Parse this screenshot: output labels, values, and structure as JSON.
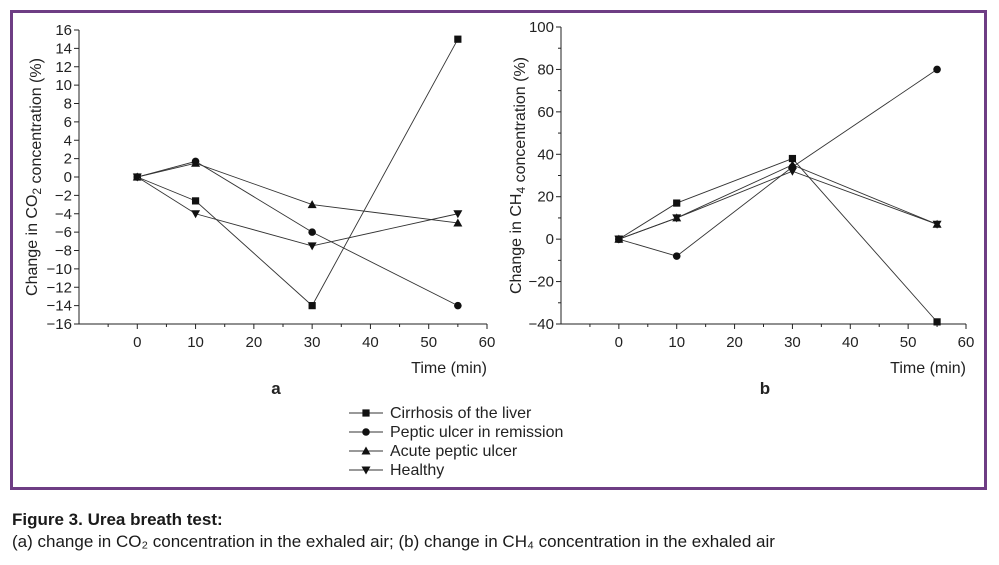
{
  "figure": {
    "title": "Figure 3. Urea breath test:",
    "caption": "(a) change in CO₂ concentration in the exhaled air; (b) change in CH₄ concentration in the exhaled air"
  },
  "legend": [
    "Cirrhosis of the liver",
    "Peptic ulcer in remission",
    "Acute peptic ulcer",
    "Healthy"
  ],
  "chart_data": [
    {
      "type": "line",
      "panel": "a",
      "xlabel": "Time (min)",
      "ylabel": "Change in CO₂ concentration (%)",
      "xlim": [
        -10,
        60
      ],
      "ylim": [
        -16,
        16
      ],
      "xticks": [
        0,
        10,
        20,
        30,
        40,
        50,
        60
      ],
      "yticks": [
        16,
        14,
        12,
        10,
        8,
        6,
        4,
        2,
        0,
        -2,
        -4,
        -6,
        -8,
        -10,
        -12,
        -14,
        -16
      ],
      "x": [
        0,
        10,
        30,
        55
      ],
      "series": [
        {
          "name": "Cirrhosis of the liver",
          "marker": "square",
          "values": [
            0,
            -2.6,
            -14,
            15
          ]
        },
        {
          "name": "Peptic ulcer in remission",
          "marker": "circle",
          "values": [
            0,
            1.7,
            -6,
            -14
          ]
        },
        {
          "name": "Acute peptic ulcer",
          "marker": "triangle-up",
          "values": [
            0,
            1.5,
            -3,
            -5
          ]
        },
        {
          "name": "Healthy",
          "marker": "triangle-down",
          "values": [
            0,
            -4,
            -7.5,
            -4
          ]
        }
      ]
    },
    {
      "type": "line",
      "panel": "b",
      "xlabel": "Time (min)",
      "ylabel": "Change in CH₄ concentration (%)",
      "xlim": [
        -10,
        60
      ],
      "ylim": [
        -40,
        100
      ],
      "xticks": [
        0,
        10,
        20,
        30,
        40,
        50,
        60
      ],
      "yticks": [
        100,
        80,
        60,
        40,
        20,
        0,
        -20,
        -40
      ],
      "x": [
        0,
        10,
        30,
        55
      ],
      "series": [
        {
          "name": "Cirrhosis of the liver",
          "marker": "square",
          "values": [
            0,
            17,
            38,
            -39
          ]
        },
        {
          "name": "Peptic ulcer in remission",
          "marker": "circle",
          "values": [
            0,
            -8,
            34,
            80
          ]
        },
        {
          "name": "Acute peptic ulcer",
          "marker": "triangle-up",
          "values": [
            0,
            10,
            35,
            7
          ]
        },
        {
          "name": "Healthy",
          "marker": "triangle-down",
          "values": [
            0,
            10,
            32,
            7
          ]
        }
      ]
    }
  ]
}
